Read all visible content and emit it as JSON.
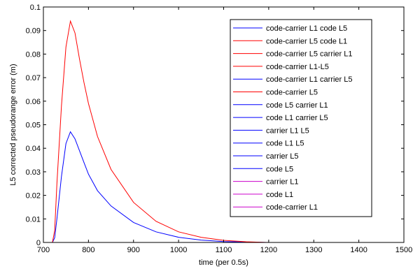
{
  "chart_data": {
    "type": "line",
    "title": "",
    "xlabel": "time (per 0.5s)",
    "ylabel": "L5 corrected pseudorange error (m)",
    "xlim": [
      700,
      1500
    ],
    "ylim": [
      0,
      0.1
    ],
    "xticks": [
      "700",
      "800",
      "900",
      "1000",
      "1100",
      "1200",
      "1300",
      "1400",
      "1500"
    ],
    "yticks": [
      "0",
      "0.01",
      "0.02",
      "0.03",
      "0.04",
      "0.05",
      "0.06",
      "0.07",
      "0.08",
      "0.09",
      "0.1"
    ],
    "grid": false,
    "legend_position": "top-right",
    "series": [
      {
        "name": "code-carrier L1 code L5",
        "color": "#0000ff",
        "x": [
          720,
          725,
          730,
          740,
          750,
          760,
          770,
          780,
          790,
          800,
          820,
          850,
          900,
          950,
          1000,
          1050,
          1100,
          1200,
          1500
        ],
        "y": [
          0,
          0.002,
          0.01,
          0.028,
          0.042,
          0.047,
          0.044,
          0.039,
          0.034,
          0.029,
          0.022,
          0.0155,
          0.0085,
          0.0045,
          0.0022,
          0.001,
          0.0004,
          0,
          0
        ]
      },
      {
        "name": "code-carrier L5 code L1",
        "color": "#ff0000",
        "x": [
          720,
          725,
          730,
          740,
          750,
          760,
          770,
          780,
          790,
          800,
          820,
          850,
          900,
          950,
          1000,
          1050,
          1100,
          1150,
          1200,
          1500
        ],
        "y": [
          0,
          0.005,
          0.025,
          0.058,
          0.083,
          0.094,
          0.089,
          0.078,
          0.068,
          0.059,
          0.045,
          0.031,
          0.017,
          0.009,
          0.0045,
          0.0022,
          0.0009,
          0.0003,
          0,
          0
        ]
      },
      {
        "name": "code-carrier L5 carrier L1",
        "color": "#ff0000",
        "x": [
          700,
          1500
        ],
        "y": [
          0,
          0
        ]
      },
      {
        "name": "code-carrier L1-L5",
        "color": "#ff0000",
        "x": [
          700,
          1500
        ],
        "y": [
          0,
          0
        ]
      },
      {
        "name": "code-carrier L1 carrier L5",
        "color": "#0000ff",
        "x": [
          700,
          1500
        ],
        "y": [
          0,
          0
        ]
      },
      {
        "name": "code-carrier L5",
        "color": "#ff0000",
        "x": [
          700,
          1500
        ],
        "y": [
          0,
          0
        ]
      },
      {
        "name": "code L5 carrier L1",
        "color": "#0000ff",
        "x": [
          700,
          1500
        ],
        "y": [
          0,
          0
        ]
      },
      {
        "name": "code L1 carrier L5",
        "color": "#0000ff",
        "x": [
          700,
          1500
        ],
        "y": [
          0,
          0
        ]
      },
      {
        "name": "carrier L1 L5",
        "color": "#0000ff",
        "x": [
          700,
          1500
        ],
        "y": [
          0,
          0
        ]
      },
      {
        "name": "code L1 L5",
        "color": "#0000ff",
        "x": [
          700,
          1500
        ],
        "y": [
          0,
          0
        ]
      },
      {
        "name": "carrier L5",
        "color": "#0000ff",
        "x": [
          700,
          1500
        ],
        "y": [
          0,
          0
        ]
      },
      {
        "name": "code L5",
        "color": "#0000ff",
        "x": [
          700,
          1500
        ],
        "y": [
          0,
          0
        ]
      },
      {
        "name": "carrier L1",
        "color": "#cc00cc",
        "x": [
          700,
          1500
        ],
        "y": [
          0,
          0
        ]
      },
      {
        "name": "code L1",
        "color": "#cc00cc",
        "x": [
          700,
          1500
        ],
        "y": [
          0,
          0
        ]
      },
      {
        "name": "code-carrier L1",
        "color": "#cc00cc",
        "x": [
          700,
          1500
        ],
        "y": [
          0,
          0
        ]
      }
    ]
  }
}
